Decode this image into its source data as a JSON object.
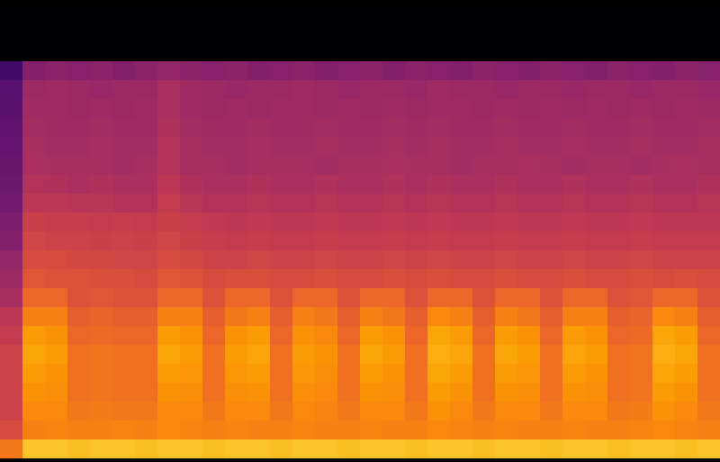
{
  "chart_data": {
    "type": "heatmap",
    "tick_labels": false,
    "zlim": [
      0,
      1
    ],
    "cells": [
      [
        0,
        0,
        0,
        0,
        0,
        0,
        0,
        0,
        0,
        0,
        0,
        0,
        0,
        0,
        0,
        0,
        0,
        0,
        0,
        0,
        0,
        0,
        0,
        0,
        0,
        0,
        0,
        0,
        0,
        0,
        0,
        0
      ],
      [
        0,
        0,
        0,
        0,
        0,
        0,
        0,
        0,
        0,
        0,
        0,
        0,
        0,
        0,
        0,
        0,
        0,
        0,
        0,
        0,
        0,
        0,
        0,
        0,
        0,
        0,
        0,
        0,
        0,
        0,
        0,
        0
      ],
      [
        0,
        0,
        0,
        0,
        0,
        0,
        0,
        0,
        0,
        0,
        0,
        0,
        0,
        0,
        0,
        0,
        0,
        0,
        0,
        0,
        0,
        0,
        0,
        0,
        0,
        0,
        0,
        0,
        0,
        0,
        0,
        0
      ],
      [
        0.2,
        0.36,
        0.38,
        0.37,
        0.38,
        0.36,
        0.38,
        0.4,
        0.38,
        0.37,
        0.38,
        0.36,
        0.37,
        0.38,
        0.36,
        0.37,
        0.38,
        0.36,
        0.38,
        0.37,
        0.36,
        0.38,
        0.37,
        0.36,
        0.38,
        0.37,
        0.36,
        0.38,
        0.37,
        0.36,
        0.38,
        0.37
      ],
      [
        0.25,
        0.42,
        0.43,
        0.42,
        0.41,
        0.42,
        0.42,
        0.46,
        0.43,
        0.42,
        0.41,
        0.42,
        0.42,
        0.43,
        0.42,
        0.41,
        0.42,
        0.42,
        0.41,
        0.43,
        0.42,
        0.42,
        0.41,
        0.42,
        0.42,
        0.41,
        0.42,
        0.42,
        0.41,
        0.42,
        0.42,
        0.41
      ],
      [
        0.26,
        0.43,
        0.43,
        0.42,
        0.43,
        0.42,
        0.43,
        0.46,
        0.43,
        0.42,
        0.43,
        0.42,
        0.43,
        0.43,
        0.42,
        0.43,
        0.42,
        0.43,
        0.42,
        0.43,
        0.43,
        0.42,
        0.43,
        0.42,
        0.43,
        0.42,
        0.43,
        0.42,
        0.43,
        0.42,
        0.43,
        0.42
      ],
      [
        0.27,
        0.44,
        0.43,
        0.43,
        0.44,
        0.43,
        0.43,
        0.47,
        0.44,
        0.43,
        0.43,
        0.44,
        0.43,
        0.43,
        0.44,
        0.43,
        0.43,
        0.44,
        0.43,
        0.44,
        0.43,
        0.43,
        0.44,
        0.43,
        0.43,
        0.44,
        0.43,
        0.43,
        0.44,
        0.43,
        0.43,
        0.44
      ],
      [
        0.28,
        0.45,
        0.44,
        0.44,
        0.45,
        0.44,
        0.44,
        0.48,
        0.45,
        0.44,
        0.44,
        0.45,
        0.44,
        0.44,
        0.45,
        0.44,
        0.44,
        0.45,
        0.44,
        0.45,
        0.44,
        0.44,
        0.45,
        0.44,
        0.44,
        0.45,
        0.44,
        0.44,
        0.45,
        0.44,
        0.44,
        0.45
      ],
      [
        0.29,
        0.46,
        0.45,
        0.45,
        0.45,
        0.44,
        0.45,
        0.48,
        0.45,
        0.45,
        0.44,
        0.45,
        0.45,
        0.45,
        0.44,
        0.45,
        0.45,
        0.46,
        0.45,
        0.45,
        0.44,
        0.45,
        0.45,
        0.46,
        0.45,
        0.44,
        0.45,
        0.45,
        0.44,
        0.45,
        0.46,
        0.45
      ],
      [
        0.3,
        0.48,
        0.47,
        0.46,
        0.47,
        0.46,
        0.46,
        0.5,
        0.47,
        0.46,
        0.46,
        0.47,
        0.46,
        0.46,
        0.47,
        0.46,
        0.46,
        0.47,
        0.46,
        0.47,
        0.46,
        0.46,
        0.47,
        0.46,
        0.46,
        0.47,
        0.46,
        0.46,
        0.47,
        0.46,
        0.46,
        0.47
      ],
      [
        0.32,
        0.5,
        0.5,
        0.49,
        0.49,
        0.48,
        0.48,
        0.52,
        0.49,
        0.48,
        0.48,
        0.49,
        0.48,
        0.48,
        0.49,
        0.48,
        0.48,
        0.49,
        0.48,
        0.49,
        0.48,
        0.48,
        0.49,
        0.48,
        0.48,
        0.49,
        0.48,
        0.48,
        0.49,
        0.48,
        0.48,
        0.49
      ],
      [
        0.34,
        0.54,
        0.53,
        0.53,
        0.52,
        0.53,
        0.52,
        0.54,
        0.52,
        0.51,
        0.5,
        0.51,
        0.5,
        0.5,
        0.51,
        0.5,
        0.5,
        0.51,
        0.5,
        0.51,
        0.5,
        0.5,
        0.51,
        0.5,
        0.5,
        0.51,
        0.5,
        0.5,
        0.51,
        0.5,
        0.5,
        0.5
      ],
      [
        0.36,
        0.56,
        0.55,
        0.55,
        0.54,
        0.55,
        0.54,
        0.56,
        0.54,
        0.53,
        0.52,
        0.53,
        0.52,
        0.52,
        0.53,
        0.52,
        0.52,
        0.53,
        0.52,
        0.53,
        0.52,
        0.52,
        0.53,
        0.52,
        0.52,
        0.53,
        0.52,
        0.52,
        0.53,
        0.52,
        0.52,
        0.52
      ],
      [
        0.4,
        0.58,
        0.58,
        0.57,
        0.57,
        0.56,
        0.56,
        0.58,
        0.57,
        0.55,
        0.55,
        0.56,
        0.55,
        0.55,
        0.56,
        0.55,
        0.55,
        0.56,
        0.55,
        0.56,
        0.55,
        0.55,
        0.56,
        0.55,
        0.55,
        0.56,
        0.55,
        0.55,
        0.56,
        0.55,
        0.55,
        0.55
      ],
      [
        0.42,
        0.61,
        0.6,
        0.6,
        0.59,
        0.59,
        0.58,
        0.61,
        0.6,
        0.58,
        0.59,
        0.59,
        0.58,
        0.58,
        0.59,
        0.58,
        0.58,
        0.59,
        0.58,
        0.59,
        0.58,
        0.58,
        0.59,
        0.58,
        0.58,
        0.59,
        0.58,
        0.58,
        0.59,
        0.58,
        0.59,
        0.58
      ],
      [
        0.45,
        0.66,
        0.66,
        0.6,
        0.61,
        0.6,
        0.6,
        0.66,
        0.66,
        0.6,
        0.66,
        0.66,
        0.6,
        0.66,
        0.66,
        0.6,
        0.66,
        0.66,
        0.6,
        0.66,
        0.66,
        0.6,
        0.66,
        0.66,
        0.6,
        0.66,
        0.66,
        0.6,
        0.61,
        0.66,
        0.66,
        0.6
      ],
      [
        0.5,
        0.72,
        0.72,
        0.64,
        0.65,
        0.64,
        0.64,
        0.72,
        0.72,
        0.64,
        0.7,
        0.72,
        0.64,
        0.72,
        0.7,
        0.64,
        0.72,
        0.7,
        0.64,
        0.74,
        0.72,
        0.64,
        0.72,
        0.7,
        0.64,
        0.72,
        0.72,
        0.64,
        0.65,
        0.74,
        0.72,
        0.64
      ],
      [
        0.52,
        0.78,
        0.76,
        0.66,
        0.67,
        0.66,
        0.66,
        0.78,
        0.76,
        0.66,
        0.76,
        0.78,
        0.66,
        0.76,
        0.74,
        0.66,
        0.78,
        0.76,
        0.66,
        0.8,
        0.78,
        0.66,
        0.78,
        0.76,
        0.66,
        0.78,
        0.76,
        0.66,
        0.67,
        0.8,
        0.78,
        0.66
      ],
      [
        0.55,
        0.8,
        0.78,
        0.68,
        0.69,
        0.68,
        0.68,
        0.8,
        0.78,
        0.68,
        0.78,
        0.8,
        0.68,
        0.78,
        0.76,
        0.68,
        0.8,
        0.78,
        0.68,
        0.82,
        0.8,
        0.68,
        0.8,
        0.78,
        0.68,
        0.8,
        0.78,
        0.68,
        0.69,
        0.82,
        0.8,
        0.68
      ],
      [
        0.55,
        0.78,
        0.76,
        0.68,
        0.69,
        0.68,
        0.68,
        0.78,
        0.77,
        0.68,
        0.77,
        0.78,
        0.68,
        0.77,
        0.75,
        0.68,
        0.78,
        0.76,
        0.68,
        0.8,
        0.78,
        0.68,
        0.78,
        0.77,
        0.68,
        0.78,
        0.76,
        0.68,
        0.69,
        0.8,
        0.78,
        0.68
      ],
      [
        0.55,
        0.76,
        0.75,
        0.68,
        0.69,
        0.68,
        0.68,
        0.76,
        0.75,
        0.68,
        0.75,
        0.76,
        0.68,
        0.75,
        0.74,
        0.68,
        0.76,
        0.75,
        0.68,
        0.78,
        0.76,
        0.68,
        0.76,
        0.75,
        0.68,
        0.76,
        0.75,
        0.68,
        0.69,
        0.78,
        0.76,
        0.68
      ],
      [
        0.55,
        0.74,
        0.74,
        0.7,
        0.71,
        0.7,
        0.7,
        0.74,
        0.74,
        0.7,
        0.74,
        0.74,
        0.7,
        0.74,
        0.73,
        0.7,
        0.74,
        0.74,
        0.7,
        0.76,
        0.74,
        0.7,
        0.74,
        0.74,
        0.7,
        0.74,
        0.74,
        0.7,
        0.71,
        0.76,
        0.74,
        0.7
      ],
      [
        0.58,
        0.72,
        0.73,
        0.72,
        0.72,
        0.73,
        0.72,
        0.74,
        0.73,
        0.72,
        0.73,
        0.72,
        0.72,
        0.73,
        0.72,
        0.72,
        0.73,
        0.72,
        0.72,
        0.74,
        0.73,
        0.72,
        0.73,
        0.72,
        0.72,
        0.73,
        0.72,
        0.72,
        0.73,
        0.74,
        0.73,
        0.72
      ],
      [
        0.7,
        0.86,
        0.86,
        0.85,
        0.86,
        0.86,
        0.85,
        0.86,
        0.86,
        0.85,
        0.86,
        0.86,
        0.85,
        0.86,
        0.86,
        0.85,
        0.86,
        0.86,
        0.85,
        0.86,
        0.86,
        0.85,
        0.86,
        0.86,
        0.85,
        0.86,
        0.86,
        0.85,
        0.86,
        0.86,
        0.85,
        0.86
      ]
    ]
  }
}
